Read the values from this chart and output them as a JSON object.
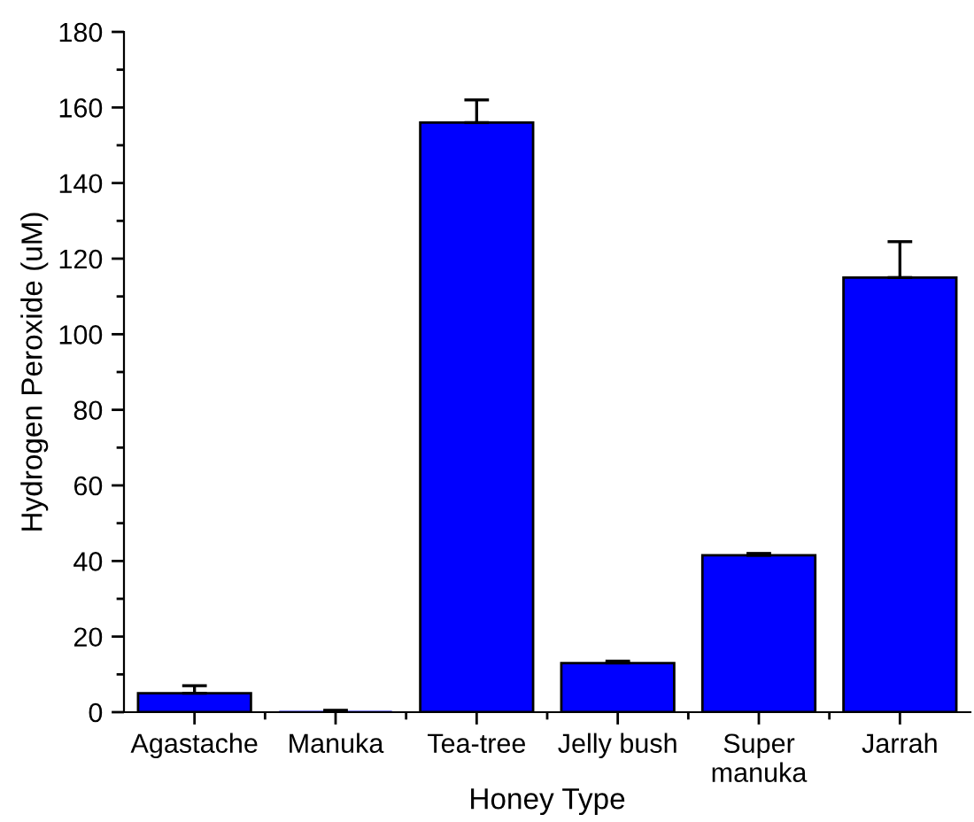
{
  "chart_data": {
    "type": "bar",
    "xlabel": "Honey Type",
    "ylabel": "Hydrogen Peroxide (uM)",
    "categories": [
      "Agastache",
      "Manuka",
      "Tea-tree",
      "Jelly bush",
      "Super\nmanuka",
      "Jarrah"
    ],
    "values": [
      5,
      0,
      156,
      13,
      41.5,
      115
    ],
    "errors": [
      [
        5,
        7
      ],
      [
        0,
        0.5
      ],
      [
        156,
        162
      ],
      [
        13,
        13.5
      ],
      [
        41.5,
        42
      ],
      [
        115,
        124.5
      ]
    ],
    "color": "#0000ff",
    "ylim": [
      0,
      180
    ],
    "yticks": [
      0,
      20,
      40,
      60,
      80,
      100,
      120,
      140,
      160,
      180
    ],
    "grid": false
  }
}
